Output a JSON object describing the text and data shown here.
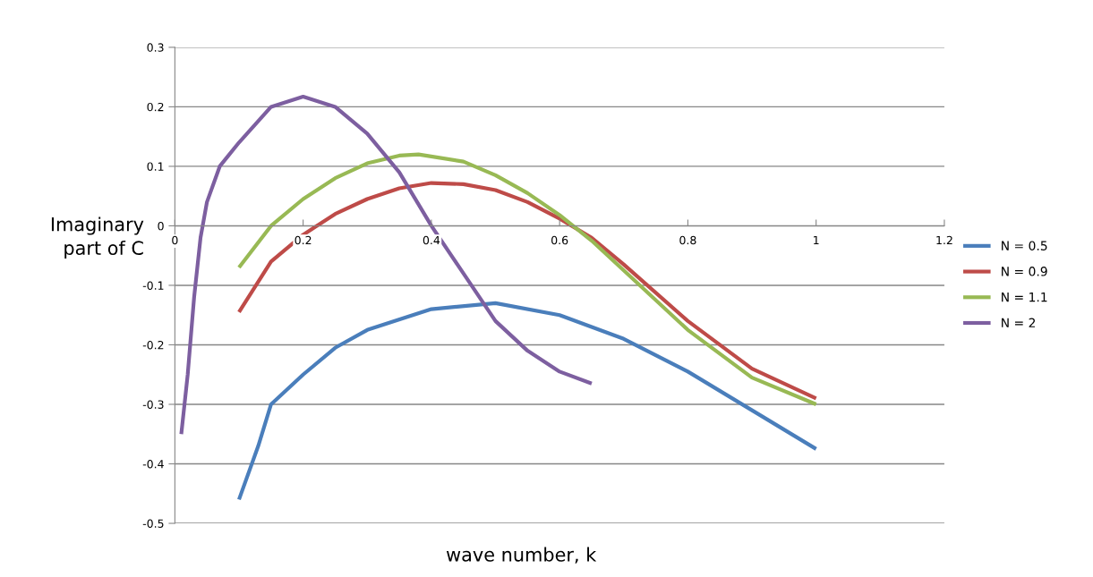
{
  "chart_data": {
    "type": "line",
    "xlabel": "wave number, k",
    "ylabel": "Imaginary\npart of C",
    "xlim": [
      0,
      1.2
    ],
    "xticks": [
      0,
      0.2,
      0.4,
      0.6,
      0.8,
      1,
      1.2
    ],
    "ylim": [
      -0.5,
      0.3
    ],
    "yticks": [
      -0.5,
      -0.4,
      -0.3,
      -0.2,
      -0.1,
      0,
      0.1,
      0.2,
      0.3
    ],
    "grid": "y",
    "legend": "right",
    "marker": "none",
    "line_style": "solid",
    "series": [
      {
        "name": "N = 0.5",
        "color": "#4a7ebb",
        "x": [
          0.1,
          0.13,
          0.15,
          0.2,
          0.25,
          0.3,
          0.4,
          0.5,
          0.6,
          0.7,
          0.8,
          0.9,
          1.0
        ],
        "values": [
          -0.46,
          -0.37,
          -0.3,
          -0.25,
          -0.205,
          -0.175,
          -0.14,
          -0.13,
          -0.15,
          -0.19,
          -0.245,
          -0.31,
          -0.375
        ]
      },
      {
        "name": "N = 0.9",
        "color": "#be4b48",
        "x": [
          0.1,
          0.15,
          0.2,
          0.25,
          0.3,
          0.35,
          0.4,
          0.45,
          0.5,
          0.55,
          0.6,
          0.65,
          0.7,
          0.8,
          0.9,
          1.0
        ],
        "values": [
          -0.145,
          -0.06,
          -0.015,
          0.02,
          0.045,
          0.063,
          0.072,
          0.07,
          0.06,
          0.04,
          0.012,
          -0.02,
          -0.065,
          -0.16,
          -0.24,
          -0.29
        ]
      },
      {
        "name": "N = 1.1",
        "color": "#98b954",
        "x": [
          0.1,
          0.15,
          0.2,
          0.25,
          0.3,
          0.35,
          0.38,
          0.45,
          0.5,
          0.55,
          0.6,
          0.65,
          0.7,
          0.8,
          0.9,
          1.0
        ],
        "values": [
          -0.07,
          0.0,
          0.045,
          0.08,
          0.105,
          0.118,
          0.12,
          0.108,
          0.085,
          0.055,
          0.018,
          -0.025,
          -0.075,
          -0.175,
          -0.255,
          -0.3
        ]
      },
      {
        "name": "N = 2",
        "color": "#7d5fa0",
        "x": [
          0.01,
          0.02,
          0.03,
          0.04,
          0.05,
          0.07,
          0.1,
          0.15,
          0.2,
          0.25,
          0.3,
          0.35,
          0.4,
          0.45,
          0.5,
          0.55,
          0.6,
          0.65
        ],
        "values": [
          -0.35,
          -0.25,
          -0.12,
          -0.02,
          0.04,
          0.1,
          0.14,
          0.2,
          0.217,
          0.2,
          0.155,
          0.09,
          0.0,
          -0.08,
          -0.16,
          -0.21,
          -0.245,
          -0.265
        ]
      }
    ]
  }
}
